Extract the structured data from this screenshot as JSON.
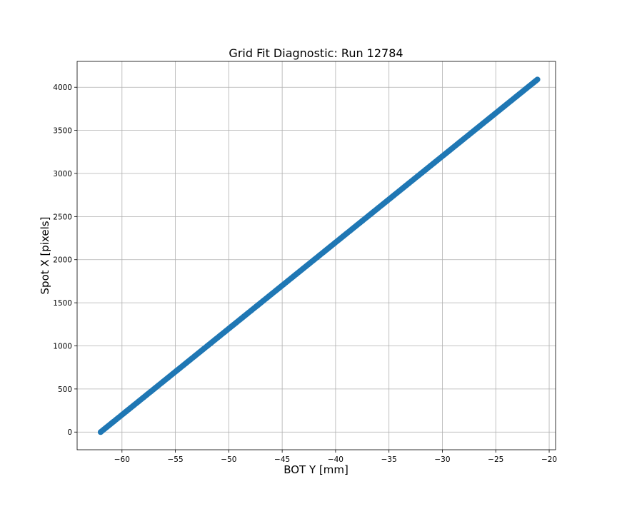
{
  "chart_data": {
    "type": "scatter",
    "title": "Grid Fit Diagnostic: Run 12784",
    "xlabel": "BOT Y [mm]",
    "ylabel": "Spot X [pixels]",
    "xlim": [
      -64.2,
      -19.4
    ],
    "ylim": [
      -205,
      4300
    ],
    "xticks": [
      -60,
      -55,
      -50,
      -45,
      -40,
      -35,
      -30,
      -25,
      -20
    ],
    "xtick_labels": [
      "−60",
      "−55",
      "−50",
      "−45",
      "−40",
      "−35",
      "−30",
      "−25",
      "−20"
    ],
    "yticks": [
      0,
      500,
      1000,
      1500,
      2000,
      2500,
      3000,
      3500,
      4000
    ],
    "ytick_labels": [
      "0",
      "500",
      "1000",
      "1500",
      "2000",
      "2500",
      "3000",
      "3500",
      "4000"
    ],
    "grid": true,
    "series": [
      {
        "color": "#1f77b4",
        "points": [
          [
            -62.0,
            0
          ],
          [
            -61.4,
            60
          ],
          [
            -60.8,
            120
          ],
          [
            -60.0,
            200
          ],
          [
            -59.4,
            260
          ],
          [
            -58.8,
            320
          ],
          [
            -58.1,
            390
          ],
          [
            -57.4,
            460
          ],
          [
            -56.8,
            520
          ],
          [
            -56.1,
            590
          ],
          [
            -55.4,
            660
          ],
          [
            -54.8,
            720
          ],
          [
            -54.1,
            790
          ],
          [
            -53.5,
            850
          ],
          [
            -52.8,
            920
          ],
          [
            -52.1,
            990
          ],
          [
            -51.5,
            1050
          ],
          [
            -50.8,
            1120
          ],
          [
            -50.1,
            1190
          ],
          [
            -49.5,
            1250
          ],
          [
            -48.8,
            1320
          ],
          [
            -48.2,
            1380
          ],
          [
            -47.5,
            1450
          ],
          [
            -46.9,
            1510
          ],
          [
            -46.2,
            1580
          ],
          [
            -45.5,
            1650
          ],
          [
            -44.9,
            1710
          ],
          [
            -44.2,
            1780
          ],
          [
            -43.6,
            1840
          ],
          [
            -42.9,
            1910
          ],
          [
            -42.3,
            1970
          ],
          [
            -41.6,
            2040
          ],
          [
            -40.9,
            2110
          ],
          [
            -40.3,
            2170
          ],
          [
            -39.6,
            2240
          ],
          [
            -39.0,
            2300
          ],
          [
            -38.3,
            2370
          ],
          [
            -37.7,
            2430
          ],
          [
            -37.0,
            2500
          ],
          [
            -36.4,
            2560
          ],
          [
            -35.7,
            2630
          ],
          [
            -35.0,
            2700
          ],
          [
            -34.4,
            2760
          ],
          [
            -33.7,
            2830
          ],
          [
            -33.1,
            2890
          ],
          [
            -32.4,
            2960
          ],
          [
            -31.8,
            3020
          ],
          [
            -31.1,
            3090
          ],
          [
            -30.5,
            3150
          ],
          [
            -29.8,
            3220
          ],
          [
            -29.2,
            3280
          ],
          [
            -28.5,
            3350
          ],
          [
            -27.9,
            3410
          ],
          [
            -27.2,
            3480
          ],
          [
            -26.6,
            3540
          ],
          [
            -25.9,
            3610
          ],
          [
            -25.3,
            3670
          ],
          [
            -24.6,
            3740
          ],
          [
            -24.0,
            3800
          ],
          [
            -23.3,
            3870
          ],
          [
            -22.7,
            3930
          ],
          [
            -22.0,
            4000
          ],
          [
            -21.5,
            4050
          ],
          [
            -21.1,
            4090
          ]
        ]
      }
    ]
  }
}
